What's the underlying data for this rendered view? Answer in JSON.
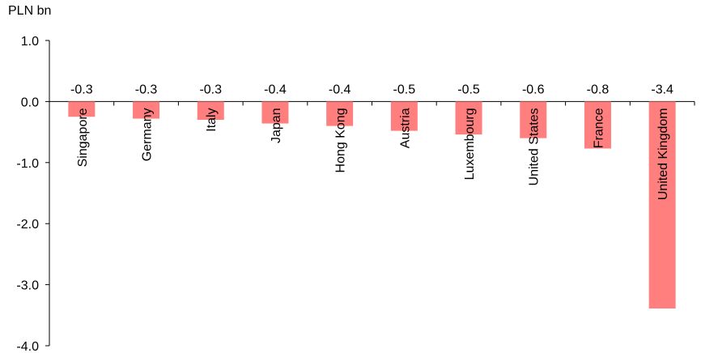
{
  "chart_data": {
    "type": "bar",
    "unit_label": "PLN bn",
    "categories": [
      "Singapore",
      "Germany",
      "Italy",
      "Japan",
      "Hong Kong",
      "Austria",
      "Luxembourg",
      "United States",
      "France",
      "United Kingdom"
    ],
    "values": [
      -0.25,
      -0.28,
      -0.3,
      -0.36,
      -0.4,
      -0.48,
      -0.54,
      -0.6,
      -0.77,
      -3.39
    ],
    "data_labels": [
      "-0.3",
      "-0.3",
      "-0.3",
      "-0.4",
      "-0.4",
      "-0.5",
      "-0.5",
      "-0.6",
      "-0.8",
      "-3.4"
    ],
    "yticks": [
      1.0,
      0.0,
      -1.0,
      -2.0,
      -3.0,
      -4.0
    ],
    "ytick_labels": [
      "1.0",
      "0.0",
      "-1.0",
      "-2.0",
      "-3.0",
      "-4.0"
    ],
    "ylim": [
      -4.0,
      1.0
    ],
    "bar_color": "#FF7F7F",
    "grid": false
  }
}
